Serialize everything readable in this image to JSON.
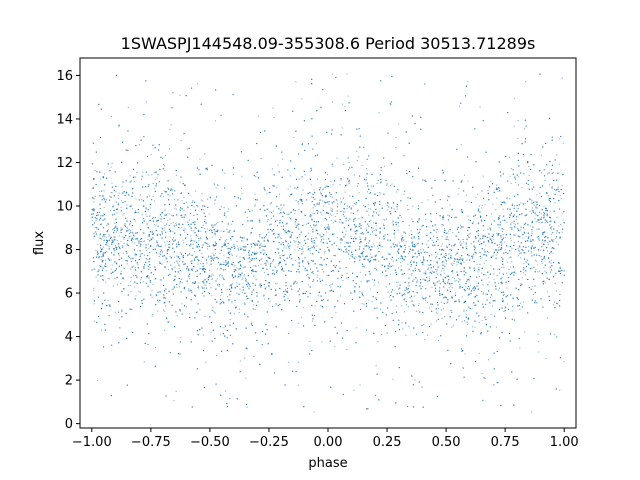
{
  "chart_data": {
    "type": "scatter",
    "title": "1SWASPJ144548.09-355308.6 Period 30513.71289s",
    "xlabel": "phase",
    "ylabel": "flux",
    "xlim": [
      -1.05,
      1.05
    ],
    "ylim": [
      -0.2,
      16.8
    ],
    "x_ticks": [
      -1.0,
      -0.75,
      -0.5,
      -0.25,
      0.0,
      0.25,
      0.5,
      0.75,
      1.0
    ],
    "x_tick_labels": [
      "−1.00",
      "−0.75",
      "−0.50",
      "−0.25",
      "0.00",
      "0.25",
      "0.50",
      "0.75",
      "1.00"
    ],
    "y_ticks": [
      0,
      2,
      4,
      6,
      8,
      10,
      12,
      14,
      16
    ],
    "y_tick_labels": [
      "0",
      "2",
      "4",
      "6",
      "8",
      "10",
      "12",
      "14",
      "16"
    ],
    "grid": false,
    "point_color": "#1f77b4",
    "series": [
      {
        "x": [
          -1.0,
          -0.9,
          -0.8,
          -0.7,
          -0.6,
          -0.5,
          -0.45,
          -0.4,
          -0.35,
          -0.3,
          -0.2,
          -0.1,
          0.0,
          0.1,
          0.2,
          0.3,
          0.4,
          0.5,
          0.55,
          0.6,
          0.65,
          0.7,
          0.8,
          0.9,
          1.0
        ],
        "y": [
          8.4,
          8.6,
          8.7,
          8.4,
          8.0,
          7.5,
          7.3,
          7.1,
          7.2,
          7.6,
          8.2,
          8.6,
          8.7,
          8.6,
          8.4,
          8.0,
          7.6,
          7.3,
          7.1,
          7.2,
          7.5,
          7.9,
          8.4,
          8.6,
          8.4
        ],
        "y_spread": [
          1.6,
          1.7,
          1.7,
          1.7,
          1.6,
          1.6,
          1.6,
          1.6,
          1.6,
          1.6,
          1.6,
          1.7,
          1.7,
          1.7,
          1.6,
          1.6,
          1.6,
          1.6,
          1.6,
          1.6,
          1.6,
          1.6,
          1.7,
          1.7,
          1.6
        ],
        "y_min": 0.5,
        "y_max": 16.1
      }
    ]
  }
}
